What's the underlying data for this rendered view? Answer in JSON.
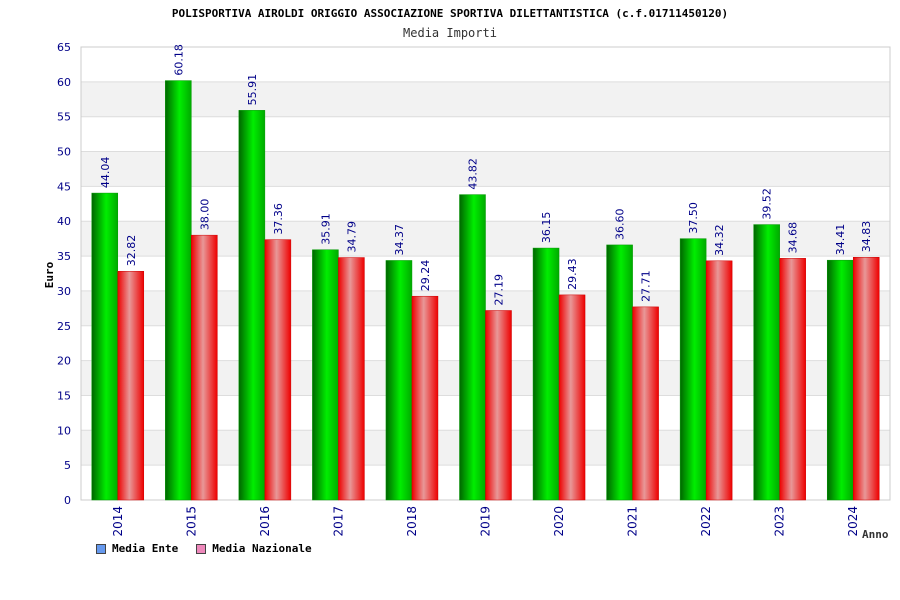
{
  "chart_data": {
    "type": "bar",
    "title": "POLISPORTIVA AIROLDI ORIGGIO ASSOCIAZIONE SPORTIVA DILETTANTISTICA (c.f.01711450120)",
    "subtitle": "Media Importi",
    "xlabel": "Anno",
    "ylabel": "Euro",
    "ylim": [
      0,
      65
    ],
    "yticks": [
      0,
      5,
      10,
      15,
      20,
      25,
      30,
      35,
      40,
      45,
      50,
      55,
      60,
      65
    ],
    "grid": true,
    "legend_position": "bottom-left",
    "categories": [
      "2014",
      "2015",
      "2016",
      "2017",
      "2018",
      "2019",
      "2020",
      "2021",
      "2022",
      "2023",
      "2024"
    ],
    "series": [
      {
        "name": "Media Ente",
        "values": [
          44.04,
          60.18,
          55.91,
          35.91,
          34.37,
          43.82,
          36.15,
          36.6,
          37.5,
          39.52,
          34.41
        ],
        "labels": [
          "44.04",
          "60.18",
          "55.91",
          "35.91",
          "34.37",
          "43.82",
          "36.15",
          "36.60",
          "37.50",
          "39.52",
          "34.41"
        ],
        "color": "#00cc00",
        "legend_color": "#6699ee"
      },
      {
        "name": "Media Nazionale",
        "values": [
          32.82,
          38.0,
          37.36,
          34.79,
          29.24,
          27.19,
          29.43,
          27.71,
          34.32,
          34.68,
          34.83
        ],
        "labels": [
          "32.82",
          "38.00",
          "37.36",
          "34.79",
          "29.24",
          "27.19",
          "29.43",
          "27.71",
          "34.32",
          "34.68",
          "34.83"
        ],
        "color": "#ee0000",
        "legend_color": "#ee88bb"
      }
    ]
  }
}
